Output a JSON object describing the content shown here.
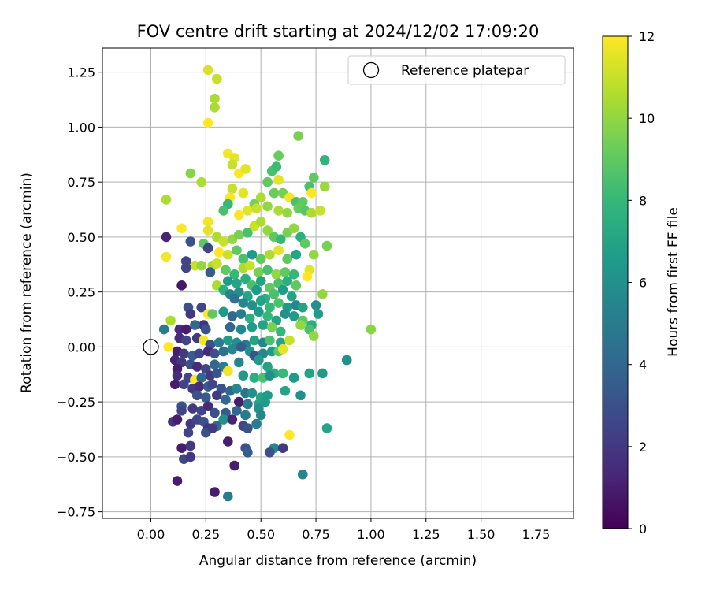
{
  "chart_data": {
    "type": "scatter",
    "title": "FOV centre drift starting at 2024/12/02 17:09:20",
    "xlabel": "Angular distance from reference (arcmin)",
    "ylabel": "Rotation from reference (arcmin)",
    "xlim": [
      -0.22,
      1.92
    ],
    "ylim": [
      -0.78,
      1.36
    ],
    "xticks": [
      "0.00",
      "0.25",
      "0.50",
      "0.75",
      "1.00",
      "1.25",
      "1.50",
      "1.75"
    ],
    "yticks": [
      "−0.75",
      "−0.50",
      "−0.25",
      "0.00",
      "0.25",
      "0.50",
      "0.75",
      "1.00",
      "1.25"
    ],
    "xtick_values": [
      0,
      0.25,
      0.5,
      0.75,
      1.0,
      1.25,
      1.5,
      1.75
    ],
    "ytick_values": [
      -0.75,
      -0.5,
      -0.25,
      0,
      0.25,
      0.5,
      0.75,
      1.0,
      1.25
    ],
    "grid": true,
    "legend": {
      "placement": "top-right",
      "label": "Reference platepar"
    },
    "colorbar": {
      "label": "Hours from first FF file",
      "range": [
        0,
        12
      ],
      "ticks": [
        "0",
        "2",
        "4",
        "6",
        "8",
        "10",
        "12"
      ],
      "tick_values": [
        0,
        2,
        4,
        6,
        8,
        10,
        12
      ],
      "colormap": "viridis",
      "colormap_stops": [
        "#440154",
        "#482878",
        "#3e4989",
        "#31688e",
        "#26828e",
        "#1f9e89",
        "#35b779",
        "#6ece58",
        "#b5de2b",
        "#fde725"
      ]
    },
    "reference_point": {
      "x": 0.0,
      "y": 0.0
    },
    "points": [
      [
        0.26,
        1.26,
        11.3
      ],
      [
        0.3,
        1.22,
        11.0
      ],
      [
        0.29,
        1.13,
        10.5
      ],
      [
        0.29,
        1.09,
        10.5
      ],
      [
        0.26,
        1.02,
        12.0
      ],
      [
        0.67,
        0.96,
        9.5
      ],
      [
        0.35,
        0.88,
        11.8
      ],
      [
        0.38,
        0.86,
        11.5
      ],
      [
        0.58,
        0.87,
        9.2
      ],
      [
        0.37,
        0.83,
        11.0
      ],
      [
        0.4,
        0.79,
        12.0
      ],
      [
        0.43,
        0.81,
        11.5
      ],
      [
        0.55,
        0.8,
        8.5
      ],
      [
        0.57,
        0.82,
        8.2
      ],
      [
        0.18,
        0.79,
        9.8
      ],
      [
        0.79,
        0.85,
        7.8
      ],
      [
        0.23,
        0.75,
        10.5
      ],
      [
        0.53,
        0.75,
        9.0
      ],
      [
        0.37,
        0.72,
        11.0
      ],
      [
        0.42,
        0.7,
        11.5
      ],
      [
        0.36,
        0.68,
        12.0
      ],
      [
        0.07,
        0.67,
        10.5
      ],
      [
        0.74,
        0.77,
        9.0
      ],
      [
        0.79,
        0.73,
        10.2
      ],
      [
        0.72,
        0.73,
        8.5
      ],
      [
        0.73,
        0.7,
        12.0
      ],
      [
        0.47,
        0.65,
        9.5
      ],
      [
        0.5,
        0.68,
        10.5
      ],
      [
        0.56,
        0.7,
        9.2
      ],
      [
        0.58,
        0.76,
        11.5
      ],
      [
        0.6,
        0.7,
        9.5
      ],
      [
        0.63,
        0.68,
        11.8
      ],
      [
        0.66,
        0.66,
        8.5
      ],
      [
        0.69,
        0.66,
        9.0
      ],
      [
        0.35,
        0.65,
        8.0
      ],
      [
        0.33,
        0.62,
        8.5
      ],
      [
        0.4,
        0.6,
        12.0
      ],
      [
        0.44,
        0.62,
        11.5
      ],
      [
        0.48,
        0.63,
        11.0
      ],
      [
        0.53,
        0.64,
        10.0
      ],
      [
        0.58,
        0.62,
        10.5
      ],
      [
        0.62,
        0.61,
        10.0
      ],
      [
        0.67,
        0.63,
        9.2
      ],
      [
        0.7,
        0.62,
        8.8
      ],
      [
        0.73,
        0.61,
        10.5
      ],
      [
        0.77,
        0.62,
        11.0
      ],
      [
        0.26,
        0.57,
        11.8
      ],
      [
        0.26,
        0.53,
        11.5
      ],
      [
        0.14,
        0.54,
        12.0
      ],
      [
        0.07,
        0.5,
        1.2
      ],
      [
        0.18,
        0.48,
        3.0
      ],
      [
        0.24,
        0.47,
        9.0
      ],
      [
        0.3,
        0.5,
        10.5
      ],
      [
        0.33,
        0.48,
        11.0
      ],
      [
        0.37,
        0.49,
        10.0
      ],
      [
        0.4,
        0.51,
        9.5
      ],
      [
        0.44,
        0.52,
        8.5
      ],
      [
        0.47,
        0.55,
        11.0
      ],
      [
        0.5,
        0.57,
        10.5
      ],
      [
        0.53,
        0.53,
        10.0
      ],
      [
        0.56,
        0.5,
        9.0
      ],
      [
        0.59,
        0.49,
        8.0
      ],
      [
        0.62,
        0.52,
        9.5
      ],
      [
        0.65,
        0.54,
        10.0
      ],
      [
        0.68,
        0.5,
        7.5
      ],
      [
        0.7,
        0.47,
        9.0
      ],
      [
        0.8,
        0.46,
        9.5
      ],
      [
        0.74,
        0.42,
        10.0
      ],
      [
        0.26,
        0.45,
        2.5
      ],
      [
        0.31,
        0.43,
        12.0
      ],
      [
        0.35,
        0.42,
        11.0
      ],
      [
        0.39,
        0.44,
        9.0
      ],
      [
        0.42,
        0.4,
        8.5
      ],
      [
        0.46,
        0.42,
        6.5
      ],
      [
        0.5,
        0.4,
        9.0
      ],
      [
        0.54,
        0.42,
        10.5
      ],
      [
        0.58,
        0.44,
        11.5
      ],
      [
        0.62,
        0.4,
        9.0
      ],
      [
        0.66,
        0.42,
        7.0
      ],
      [
        0.07,
        0.41,
        11.8
      ],
      [
        0.16,
        0.39,
        2.5
      ],
      [
        0.2,
        0.37,
        11.0
      ],
      [
        0.23,
        0.37,
        10.0
      ],
      [
        0.28,
        0.37,
        10.5
      ],
      [
        0.27,
        0.34,
        3.5
      ],
      [
        0.3,
        0.38,
        11.0
      ],
      [
        0.34,
        0.35,
        9.0
      ],
      [
        0.38,
        0.33,
        8.0
      ],
      [
        0.42,
        0.36,
        10.5
      ],
      [
        0.45,
        0.37,
        11.0
      ],
      [
        0.49,
        0.34,
        9.5
      ],
      [
        0.53,
        0.35,
        8.5
      ],
      [
        0.57,
        0.33,
        10.0
      ],
      [
        0.61,
        0.34,
        9.0
      ],
      [
        0.65,
        0.33,
        8.0
      ],
      [
        0.72,
        0.35,
        11.5
      ],
      [
        0.71,
        0.32,
        12.0
      ],
      [
        0.14,
        0.28,
        0.8
      ],
      [
        0.16,
        0.36,
        2.5
      ],
      [
        0.35,
        0.3,
        6.5
      ],
      [
        0.39,
        0.29,
        7.0
      ],
      [
        0.43,
        0.31,
        7.5
      ],
      [
        0.46,
        0.28,
        8.5
      ],
      [
        0.5,
        0.3,
        7.0
      ],
      [
        0.54,
        0.27,
        9.0
      ],
      [
        0.58,
        0.29,
        8.5
      ],
      [
        0.62,
        0.3,
        7.5
      ],
      [
        0.66,
        0.28,
        9.0
      ],
      [
        0.3,
        0.28,
        10.5
      ],
      [
        0.33,
        0.26,
        7.5
      ],
      [
        0.36,
        0.24,
        5.5
      ],
      [
        0.4,
        0.25,
        6.0
      ],
      [
        0.44,
        0.23,
        7.0
      ],
      [
        0.48,
        0.26,
        6.5
      ],
      [
        0.52,
        0.22,
        7.5
      ],
      [
        0.56,
        0.24,
        8.5
      ],
      [
        0.6,
        0.26,
        6.5
      ],
      [
        0.64,
        0.23,
        7.0
      ],
      [
        0.78,
        0.24,
        10.0
      ],
      [
        0.38,
        0.22,
        4.5
      ],
      [
        0.42,
        0.2,
        5.5
      ],
      [
        0.46,
        0.19,
        6.0
      ],
      [
        0.5,
        0.21,
        7.0
      ],
      [
        0.54,
        0.18,
        8.0
      ],
      [
        0.58,
        0.2,
        8.5
      ],
      [
        0.62,
        0.18,
        6.5
      ],
      [
        0.66,
        0.19,
        5.5
      ],
      [
        0.69,
        0.18,
        7.0
      ],
      [
        0.75,
        0.19,
        6.0
      ],
      [
        0.17,
        0.18,
        3.0
      ],
      [
        0.23,
        0.18,
        2.5
      ],
      [
        0.26,
        0.15,
        12.0
      ],
      [
        0.28,
        0.15,
        9.0
      ],
      [
        0.33,
        0.16,
        6.5
      ],
      [
        0.37,
        0.14,
        4.0
      ],
      [
        0.41,
        0.15,
        5.0
      ],
      [
        0.45,
        0.13,
        7.5
      ],
      [
        0.49,
        0.16,
        6.5
      ],
      [
        0.53,
        0.14,
        8.0
      ],
      [
        0.57,
        0.12,
        7.0
      ],
      [
        0.61,
        0.15,
        6.0
      ],
      [
        0.65,
        0.14,
        6.5
      ],
      [
        0.69,
        0.12,
        9.0
      ],
      [
        0.73,
        0.1,
        7.5
      ],
      [
        0.76,
        0.15,
        6.5
      ],
      [
        0.09,
        0.12,
        10.5
      ],
      [
        0.18,
        0.15,
        2.0
      ],
      [
        0.24,
        0.1,
        1.8
      ],
      [
        0.13,
        0.08,
        1.5
      ],
      [
        0.16,
        0.08,
        1.0
      ],
      [
        0.2,
        0.1,
        4.0
      ],
      [
        0.25,
        0.08,
        3.0
      ],
      [
        0.06,
        0.08,
        5.0
      ],
      [
        0.36,
        0.09,
        4.0
      ],
      [
        0.41,
        0.08,
        5.5
      ],
      [
        0.46,
        0.09,
        6.5
      ],
      [
        0.51,
        0.1,
        7.0
      ],
      [
        0.55,
        0.09,
        9.5
      ],
      [
        0.59,
        0.07,
        8.0
      ],
      [
        0.68,
        0.1,
        10.0
      ],
      [
        0.72,
        0.08,
        8.5
      ],
      [
        0.74,
        0.05,
        10.0
      ],
      [
        0.13,
        0.04,
        1.5
      ],
      [
        0.16,
        0.03,
        2.5
      ],
      [
        0.21,
        0.04,
        2.0
      ],
      [
        0.24,
        0.03,
        11.8
      ],
      [
        0.27,
        0.01,
        3.0
      ],
      [
        0.31,
        0.02,
        5.0
      ],
      [
        0.35,
        0.03,
        6.5
      ],
      [
        0.39,
        0.02,
        6.0
      ],
      [
        0.43,
        0.01,
        5.0
      ],
      [
        0.47,
        0.03,
        7.0
      ],
      [
        0.51,
        0.02,
        5.5
      ],
      [
        0.54,
        0.03,
        8.5
      ],
      [
        0.59,
        0.02,
        7.0
      ],
      [
        0.63,
        0.03,
        11.0
      ],
      [
        0.08,
        0.0,
        12.0
      ],
      [
        0.12,
        -0.02,
        1.0
      ],
      [
        0.15,
        -0.03,
        2.0
      ],
      [
        0.19,
        -0.04,
        3.5
      ],
      [
        0.22,
        -0.03,
        2.5
      ],
      [
        0.26,
        -0.02,
        1.5
      ],
      [
        0.29,
        -0.03,
        3.0
      ],
      [
        0.33,
        -0.02,
        4.5
      ],
      [
        0.37,
        -0.01,
        5.5
      ],
      [
        0.41,
        0.0,
        3.5
      ],
      [
        0.45,
        -0.02,
        6.0
      ],
      [
        0.47,
        -0.04,
        3.0
      ],
      [
        0.51,
        -0.03,
        5.5
      ],
      [
        0.55,
        -0.02,
        6.5
      ],
      [
        0.58,
        -0.02,
        9.0
      ],
      [
        0.6,
        -0.01,
        11.5
      ],
      [
        0.89,
        -0.06,
        6.0
      ],
      [
        0.11,
        -0.06,
        1.2
      ],
      [
        0.14,
        -0.07,
        2.0
      ],
      [
        0.18,
        -0.08,
        3.0
      ],
      [
        0.21,
        -0.09,
        1.5
      ],
      [
        0.25,
        -0.1,
        2.5
      ],
      [
        0.29,
        -0.08,
        4.0
      ],
      [
        0.33,
        -0.09,
        5.0
      ],
      [
        0.35,
        -0.11,
        11.8
      ],
      [
        0.4,
        -0.07,
        5.5
      ],
      [
        0.49,
        -0.06,
        6.5
      ],
      [
        0.53,
        -0.09,
        7.0
      ],
      [
        0.56,
        -0.12,
        7.5
      ],
      [
        0.12,
        -0.1,
        1.0
      ],
      [
        0.12,
        -0.13,
        1.5
      ],
      [
        0.17,
        -0.14,
        2.5
      ],
      [
        0.2,
        -0.15,
        12.0
      ],
      [
        0.23,
        -0.14,
        4.0
      ],
      [
        0.27,
        -0.13,
        2.0
      ],
      [
        0.3,
        -0.12,
        3.0
      ],
      [
        0.42,
        -0.13,
        6.5
      ],
      [
        0.47,
        -0.14,
        7.5
      ],
      [
        0.51,
        -0.14,
        8.5
      ],
      [
        0.54,
        -0.13,
        6.0
      ],
      [
        0.6,
        -0.12,
        8.0
      ],
      [
        0.65,
        -0.14,
        6.5
      ],
      [
        0.72,
        -0.12,
        7.0
      ],
      [
        0.78,
        -0.12,
        6.5
      ],
      [
        0.11,
        -0.17,
        1.0
      ],
      [
        0.15,
        -0.17,
        2.5
      ],
      [
        0.19,
        -0.19,
        2.0
      ],
      [
        0.22,
        -0.18,
        1.5
      ],
      [
        0.26,
        -0.18,
        3.5
      ],
      [
        0.28,
        -0.17,
        2.5
      ],
      [
        0.32,
        -0.19,
        3.0
      ],
      [
        0.36,
        -0.2,
        4.0
      ],
      [
        0.39,
        -0.19,
        5.5
      ],
      [
        0.43,
        -0.21,
        4.5
      ],
      [
        0.46,
        -0.21,
        6.0
      ],
      [
        0.5,
        -0.23,
        7.0
      ],
      [
        0.53,
        -0.22,
        6.5
      ],
      [
        0.61,
        -0.2,
        7.0
      ],
      [
        0.68,
        -0.22,
        6.0
      ],
      [
        0.21,
        -0.22,
        3.0
      ],
      [
        0.25,
        -0.23,
        3.5
      ],
      [
        0.3,
        -0.22,
        2.0
      ],
      [
        0.34,
        -0.24,
        4.0
      ],
      [
        0.4,
        -0.25,
        1.0
      ],
      [
        0.44,
        -0.26,
        5.0
      ],
      [
        0.49,
        -0.26,
        7.0
      ],
      [
        0.52,
        -0.25,
        6.5
      ],
      [
        0.14,
        -0.27,
        3.0
      ],
      [
        0.14,
        -0.29,
        2.5
      ],
      [
        0.19,
        -0.28,
        2.0
      ],
      [
        0.23,
        -0.29,
        2.5
      ],
      [
        0.26,
        -0.27,
        1.5
      ],
      [
        0.29,
        -0.3,
        3.0
      ],
      [
        0.34,
        -0.3,
        3.5
      ],
      [
        0.39,
        -0.29,
        4.0
      ],
      [
        0.43,
        -0.31,
        5.0
      ],
      [
        0.49,
        -0.28,
        6.0
      ],
      [
        0.5,
        -0.31,
        5.5
      ],
      [
        0.1,
        -0.34,
        1.8
      ],
      [
        0.12,
        -0.33,
        1.0
      ],
      [
        0.18,
        -0.35,
        2.0
      ],
      [
        0.21,
        -0.33,
        2.5
      ],
      [
        0.24,
        -0.34,
        3.0
      ],
      [
        0.26,
        -0.37,
        1.8
      ],
      [
        0.3,
        -0.36,
        4.0
      ],
      [
        0.33,
        -0.33,
        6.0
      ],
      [
        0.37,
        -0.33,
        1.2
      ],
      [
        0.42,
        -0.36,
        2.5
      ],
      [
        0.44,
        -0.37,
        3.0
      ],
      [
        0.48,
        -0.35,
        5.0
      ],
      [
        0.8,
        -0.37,
        7.0
      ],
      [
        0.17,
        -0.39,
        2.5
      ],
      [
        0.25,
        -0.39,
        3.0
      ],
      [
        0.28,
        -0.37,
        2.0
      ],
      [
        0.63,
        -0.4,
        12.0
      ],
      [
        0.14,
        -0.46,
        1.0
      ],
      [
        0.18,
        -0.45,
        2.0
      ],
      [
        0.35,
        -0.43,
        1.0
      ],
      [
        0.43,
        -0.46,
        3.0
      ],
      [
        0.44,
        -0.48,
        3.5
      ],
      [
        0.56,
        -0.46,
        5.5
      ],
      [
        0.54,
        -0.48,
        3.0
      ],
      [
        0.6,
        -0.46,
        2.0
      ],
      [
        0.15,
        -0.51,
        2.5
      ],
      [
        0.18,
        -0.5,
        2.0
      ],
      [
        0.38,
        -0.54,
        1.0
      ],
      [
        0.69,
        -0.58,
        5.5
      ],
      [
        0.12,
        -0.61,
        1.0
      ],
      [
        0.29,
        -0.66,
        1.0
      ],
      [
        0.35,
        -0.68,
        5.0
      ],
      [
        1.0,
        0.08,
        9.8
      ]
    ]
  }
}
